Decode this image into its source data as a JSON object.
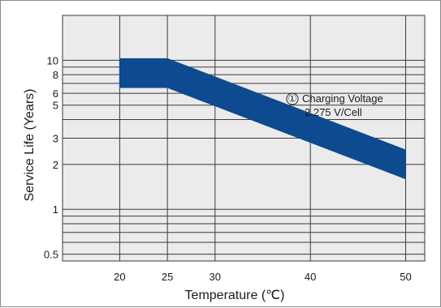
{
  "chart_data": {
    "type": "line",
    "xlabel": "Temperature (℃)",
    "ylabel": "Service Life (Years)",
    "x_ticks": [
      20,
      25,
      30,
      40,
      50
    ],
    "y_ticks": [
      0.5,
      1,
      2,
      3,
      5,
      6,
      8,
      10
    ],
    "y_scale": "log",
    "xlim": [
      14,
      52
    ],
    "ylim": [
      0.45,
      20
    ],
    "grid": true,
    "series": [
      {
        "x": [
          20,
          25,
          50
        ],
        "y": [
          8.2,
          8.2,
          2.0
        ],
        "band_width_factor": 1.25
      }
    ],
    "annotation": {
      "marker": "①",
      "line1": "Charging Voltage",
      "line2": "2.275 V/Cell",
      "x": 41.5,
      "y": 5.0
    },
    "colors": {
      "band": "#0d4a8f",
      "grid": "#3a3a3a",
      "plot_bg": "#ebebeb"
    }
  }
}
